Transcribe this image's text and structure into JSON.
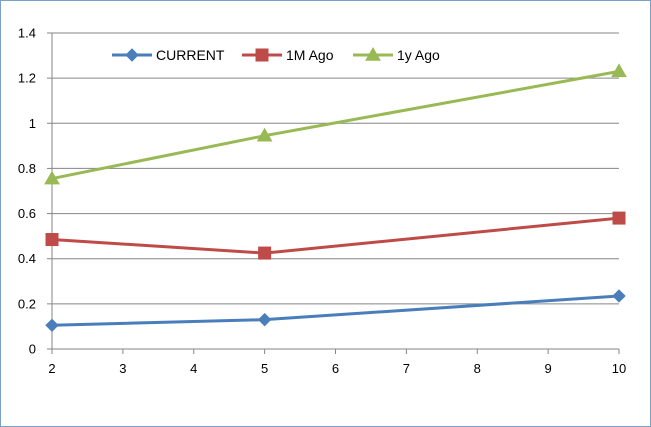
{
  "chart_data": {
    "type": "line",
    "title": "",
    "xlabel": "",
    "ylabel": "",
    "x": [
      2,
      5,
      10
    ],
    "xlim": [
      2,
      10
    ],
    "ylim": [
      0,
      1.4
    ],
    "x_ticks": [
      "2",
      "3",
      "4",
      "5",
      "6",
      "7",
      "8",
      "9",
      "10"
    ],
    "y_ticks": [
      "0",
      "0.2",
      "0.4",
      "0.6",
      "0.8",
      "1",
      "1.2",
      "1.4"
    ],
    "grid": "horizontal",
    "legend_position": "top-left",
    "series": [
      {
        "name": "CURRENT",
        "values": [
          0.105,
          0.13,
          0.235
        ],
        "color": "#4a7ebb",
        "marker": "diamond"
      },
      {
        "name": "1M Ago",
        "values": [
          0.485,
          0.425,
          0.58
        ],
        "color": "#be4b48",
        "marker": "square"
      },
      {
        "name": "1y Ago",
        "values": [
          0.755,
          0.945,
          1.23
        ],
        "color": "#98b954",
        "marker": "triangle"
      }
    ]
  }
}
